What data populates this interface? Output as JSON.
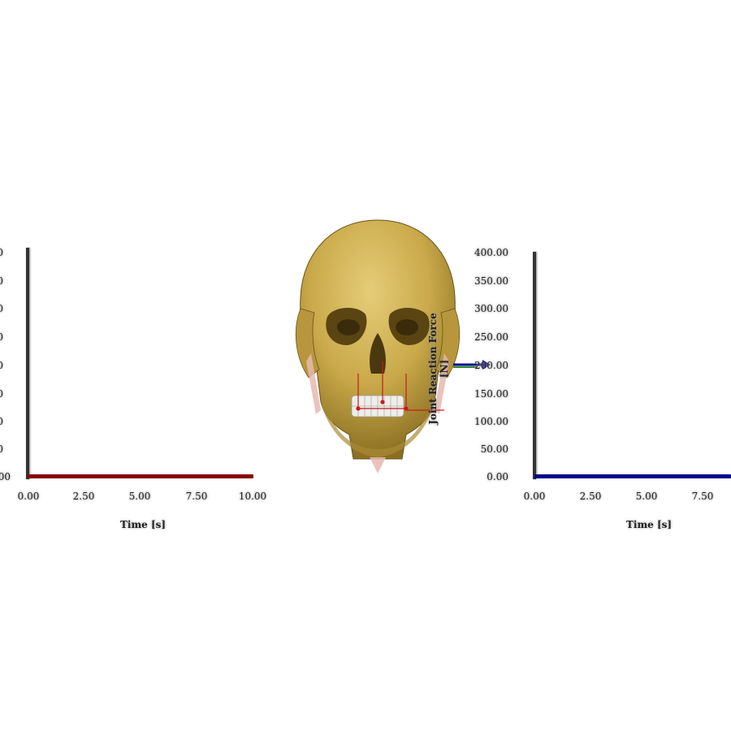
{
  "left_plot": {
    "y_ticks": [
      "0",
      "0",
      "0",
      "0",
      "0",
      "0",
      "0",
      "0",
      "00"
    ],
    "x_ticks": [
      "0.00",
      "2.50",
      "5.00",
      "7.50",
      "10.00"
    ],
    "x_title": "Time [s]",
    "series_color": "#8b0000"
  },
  "right_plot": {
    "y_ticks": [
      "400.00",
      "350.00",
      "300.00",
      "250.00",
      "200.00",
      "150.00",
      "100.00",
      "50.00",
      "0.00"
    ],
    "x_ticks": [
      "0.00",
      "2.50",
      "5.00",
      "7.50"
    ],
    "x_title": "Time [s]",
    "y_title": "Joint Reaction Force [N]",
    "series_color": "#00008b"
  },
  "chart_data": [
    {
      "type": "line",
      "xlabel": "Time [s]",
      "ylabel": "",
      "x": [
        0.0,
        10.0
      ],
      "series": [
        {
          "values": [
            0,
            0
          ]
        }
      ],
      "xlim": [
        0,
        10
      ]
    },
    {
      "type": "line",
      "xlabel": "Time [s]",
      "ylabel": "Joint Reaction Force [N]",
      "x": [
        0.0,
        10.0
      ],
      "series": [
        {
          "values": [
            0,
            0
          ]
        }
      ],
      "xlim": [
        0,
        10
      ],
      "ylim": [
        0,
        400
      ]
    }
  ],
  "viewport": {
    "model": "skull-model",
    "bone_color": "#c9a94a",
    "force_arrow_color": "#00008b"
  }
}
